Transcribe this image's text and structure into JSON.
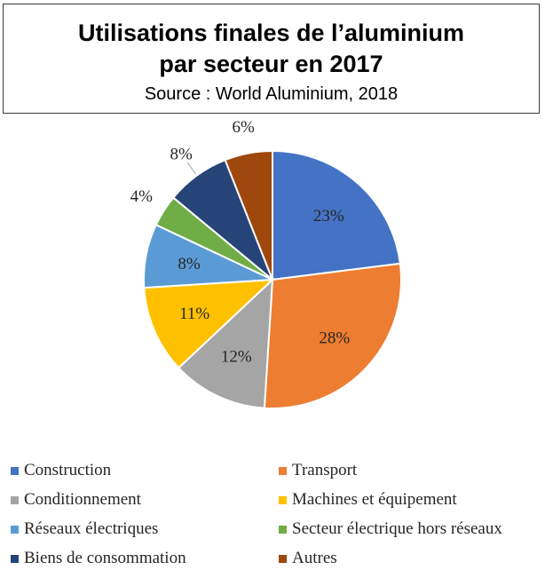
{
  "title": {
    "line1": "Utilisations finales de l’aluminium",
    "line2": "par secteur en 2017",
    "source": "Source : World Aluminium, 2018"
  },
  "chart_data": {
    "type": "pie",
    "slices": [
      {
        "label": "Construction",
        "value": 23,
        "display": "23%",
        "color": "#4472C4"
      },
      {
        "label": "Transport",
        "value": 28,
        "display": "28%",
        "color": "#ED7D31"
      },
      {
        "label": "Conditionnement",
        "value": 12,
        "display": "12%",
        "color": "#A5A5A5"
      },
      {
        "label": "Machines et équipement",
        "value": 11,
        "display": "11%",
        "color": "#FFC000"
      },
      {
        "label": "Réseaux électriques",
        "value": 8,
        "display": "8%",
        "color": "#5B9BD5"
      },
      {
        "label": "Secteur électrique hors réseaux",
        "value": 4,
        "display": "4%",
        "color": "#70AD47"
      },
      {
        "label": "Biens de consommation",
        "value": 8,
        "display": "8%",
        "color": "#264478"
      },
      {
        "label": "Autres",
        "value": 6,
        "display": "6%",
        "color": "#9E480E"
      }
    ],
    "legend_position": "bottom"
  }
}
